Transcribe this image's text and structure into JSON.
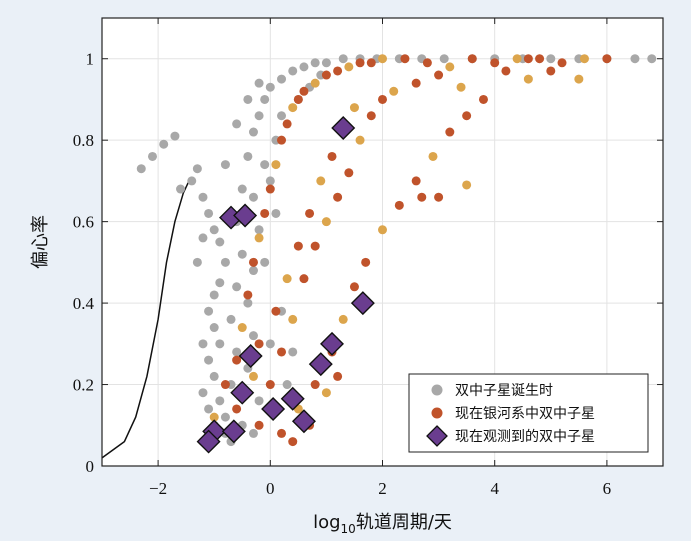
{
  "chart_data": {
    "type": "scatter",
    "xlabel_prefix": "log",
    "xlabel_sub": "10",
    "xlabel_suffix": "轨道周期/天",
    "ylabel": "偏心率",
    "xlim": [
      -3,
      7
    ],
    "ylim": [
      0,
      1.1
    ],
    "xticks": [
      -2,
      0,
      2,
      4,
      6
    ],
    "xtick_labels": [
      "−2",
      "0",
      "2",
      "4",
      "6"
    ],
    "yticks": [
      0,
      0.2,
      0.4,
      0.6,
      0.8,
      1
    ],
    "ytick_labels": [
      "0",
      "0.2",
      "0.4",
      "0.6",
      "0.8",
      "1"
    ],
    "grid": true,
    "legend_position": "bottom-right",
    "colors": {
      "birth": "#a8a8a8",
      "galaxy": "#c0532b",
      "galaxy_alt": "#dca54c",
      "observed": "#6a3d8f",
      "curve": "#111111",
      "background": "#eaf0f7",
      "plot_bg": "#ffffff",
      "grid": "#e3e3e3"
    },
    "series": [
      {
        "name": "双中子星诞生时",
        "marker": "circle",
        "color": "#a8a8a8",
        "points": [
          [
            -2.3,
            0.73
          ],
          [
            -2.1,
            0.76
          ],
          [
            -1.9,
            0.79
          ],
          [
            -1.7,
            0.81
          ],
          [
            -1.6,
            0.68
          ],
          [
            -1.4,
            0.7
          ],
          [
            -1.3,
            0.73
          ],
          [
            -1.2,
            0.66
          ],
          [
            -1.1,
            0.62
          ],
          [
            -1.0,
            0.58
          ],
          [
            -0.9,
            0.55
          ],
          [
            -0.8,
            0.5
          ],
          [
            -0.9,
            0.45
          ],
          [
            -1.0,
            0.42
          ],
          [
            -1.1,
            0.38
          ],
          [
            -1.0,
            0.34
          ],
          [
            -0.9,
            0.3
          ],
          [
            -1.1,
            0.26
          ],
          [
            -1.0,
            0.22
          ],
          [
            -1.2,
            0.18
          ],
          [
            -1.1,
            0.14
          ],
          [
            -1.0,
            0.1
          ],
          [
            -0.8,
            0.12
          ],
          [
            -0.7,
            0.2
          ],
          [
            -0.6,
            0.28
          ],
          [
            -0.7,
            0.36
          ],
          [
            -0.6,
            0.44
          ],
          [
            -0.5,
            0.52
          ],
          [
            -0.6,
            0.6
          ],
          [
            -0.5,
            0.68
          ],
          [
            -0.4,
            0.76
          ],
          [
            -0.3,
            0.82
          ],
          [
            -0.2,
            0.86
          ],
          [
            -0.1,
            0.9
          ],
          [
            0.0,
            0.93
          ],
          [
            0.2,
            0.95
          ],
          [
            0.4,
            0.97
          ],
          [
            0.6,
            0.98
          ],
          [
            0.8,
            0.99
          ],
          [
            1.0,
            0.99
          ],
          [
            1.3,
            1.0
          ],
          [
            1.6,
            1.0
          ],
          [
            1.9,
            1.0
          ],
          [
            2.3,
            1.0
          ],
          [
            2.7,
            1.0
          ],
          [
            3.1,
            1.0
          ],
          [
            3.6,
            1.0
          ],
          [
            4.0,
            1.0
          ],
          [
            4.5,
            1.0
          ],
          [
            5.0,
            1.0
          ],
          [
            5.5,
            1.0
          ],
          [
            6.0,
            1.0
          ],
          [
            6.5,
            1.0
          ],
          [
            6.8,
            1.0
          ],
          [
            -0.4,
            0.9
          ],
          [
            -0.2,
            0.94
          ],
          [
            -0.6,
            0.84
          ],
          [
            -0.8,
            0.74
          ],
          [
            -0.3,
            0.66
          ],
          [
            -0.2,
            0.58
          ],
          [
            -0.3,
            0.48
          ],
          [
            -0.4,
            0.4
          ],
          [
            -0.3,
            0.32
          ],
          [
            -0.4,
            0.24
          ],
          [
            -0.2,
            0.16
          ],
          [
            -0.5,
            0.1
          ],
          [
            -0.3,
            0.08
          ],
          [
            0.0,
            0.7
          ],
          [
            0.1,
            0.8
          ],
          [
            0.2,
            0.86
          ],
          [
            -0.8,
            0.08
          ],
          [
            -0.9,
            0.16
          ],
          [
            -0.7,
            0.06
          ],
          [
            -1.2,
            0.3
          ],
          [
            -1.3,
            0.5
          ],
          [
            -1.2,
            0.56
          ],
          [
            0.3,
            0.2
          ],
          [
            0.4,
            0.28
          ],
          [
            0.2,
            0.38
          ],
          [
            0.5,
            0.9
          ],
          [
            0.7,
            0.93
          ],
          [
            0.9,
            0.96
          ],
          [
            -0.1,
            0.74
          ],
          [
            0.1,
            0.62
          ],
          [
            -0.1,
            0.5
          ],
          [
            0.0,
            0.3
          ]
        ]
      },
      {
        "name": "现在银河系中双中子星",
        "marker": "circle",
        "color": "#c0532b",
        "color_alt": "#dca54c",
        "points": [
          [
            -1.2,
            0.06
          ],
          [
            -1.0,
            0.12
          ],
          [
            -0.8,
            0.2
          ],
          [
            -0.6,
            0.26
          ],
          [
            -0.5,
            0.34
          ],
          [
            -0.4,
            0.42
          ],
          [
            -0.3,
            0.5
          ],
          [
            -0.2,
            0.56
          ],
          [
            -0.1,
            0.62
          ],
          [
            0.0,
            0.68
          ],
          [
            0.1,
            0.74
          ],
          [
            0.2,
            0.8
          ],
          [
            0.3,
            0.84
          ],
          [
            0.4,
            0.88
          ],
          [
            0.5,
            0.9
          ],
          [
            0.6,
            0.92
          ],
          [
            0.8,
            0.94
          ],
          [
            1.0,
            0.96
          ],
          [
            1.2,
            0.97
          ],
          [
            1.4,
            0.98
          ],
          [
            1.6,
            0.99
          ],
          [
            1.8,
            0.99
          ],
          [
            2.0,
            1.0
          ],
          [
            2.4,
            1.0
          ],
          [
            2.8,
            0.99
          ],
          [
            3.2,
            0.98
          ],
          [
            3.6,
            1.0
          ],
          [
            4.0,
            0.99
          ],
          [
            4.4,
            1.0
          ],
          [
            4.8,
            1.0
          ],
          [
            5.2,
            0.99
          ],
          [
            5.6,
            1.0
          ],
          [
            0.0,
            0.2
          ],
          [
            0.2,
            0.28
          ],
          [
            0.4,
            0.36
          ],
          [
            0.6,
            0.46
          ],
          [
            0.8,
            0.54
          ],
          [
            1.0,
            0.6
          ],
          [
            1.2,
            0.66
          ],
          [
            1.4,
            0.72
          ],
          [
            1.6,
            0.8
          ],
          [
            1.8,
            0.86
          ],
          [
            2.0,
            0.9
          ],
          [
            2.2,
            0.92
          ],
          [
            2.6,
            0.94
          ],
          [
            3.0,
            0.96
          ],
          [
            3.4,
            0.93
          ],
          [
            3.8,
            0.9
          ],
          [
            0.2,
            0.08
          ],
          [
            0.5,
            0.14
          ],
          [
            0.8,
            0.2
          ],
          [
            1.1,
            0.28
          ],
          [
            1.3,
            0.36
          ],
          [
            1.5,
            0.44
          ],
          [
            1.7,
            0.5
          ],
          [
            2.0,
            0.58
          ],
          [
            2.3,
            0.64
          ],
          [
            2.6,
            0.7
          ],
          [
            2.9,
            0.76
          ],
          [
            3.2,
            0.82
          ],
          [
            3.5,
            0.86
          ],
          [
            4.6,
            0.95
          ],
          [
            5.0,
            0.97
          ],
          [
            -0.6,
            0.14
          ],
          [
            -0.3,
            0.22
          ],
          [
            -0.2,
            0.3
          ],
          [
            0.1,
            0.38
          ],
          [
            0.3,
            0.46
          ],
          [
            0.5,
            0.54
          ],
          [
            0.7,
            0.62
          ],
          [
            0.9,
            0.7
          ],
          [
            1.1,
            0.76
          ],
          [
            1.3,
            0.82
          ],
          [
            1.5,
            0.88
          ],
          [
            2.7,
            0.66
          ],
          [
            3.0,
            0.66
          ],
          [
            3.5,
            0.69
          ],
          [
            4.2,
            0.97
          ],
          [
            4.6,
            1.0
          ],
          [
            5.5,
            0.95
          ],
          [
            6.0,
            1.0
          ],
          [
            -0.2,
            0.1
          ],
          [
            0.0,
            0.14
          ],
          [
            0.4,
            0.06
          ],
          [
            0.7,
            0.1
          ],
          [
            1.0,
            0.18
          ],
          [
            1.2,
            0.22
          ]
        ]
      },
      {
        "name": "现在观测到的双中子星",
        "marker": "diamond",
        "color": "#6a3d8f",
        "points": [
          [
            1.3,
            0.83
          ],
          [
            -0.7,
            0.61
          ],
          [
            -0.45,
            0.615
          ],
          [
            1.65,
            0.4
          ],
          [
            1.1,
            0.3
          ],
          [
            -0.35,
            0.27
          ],
          [
            0.9,
            0.25
          ],
          [
            -0.5,
            0.18
          ],
          [
            0.4,
            0.165
          ],
          [
            0.05,
            0.14
          ],
          [
            0.6,
            0.11
          ],
          [
            -1.0,
            0.085
          ],
          [
            -0.65,
            0.085
          ],
          [
            -1.1,
            0.06
          ]
        ]
      }
    ],
    "curve": {
      "description": "",
      "points": [
        [
          -3,
          0.02
        ],
        [
          -2.6,
          0.06
        ],
        [
          -2.4,
          0.12
        ],
        [
          -2.2,
          0.22
        ],
        [
          -2.0,
          0.36
        ],
        [
          -1.85,
          0.5
        ],
        [
          -1.7,
          0.6
        ],
        [
          -1.55,
          0.67
        ],
        [
          -1.45,
          0.7
        ]
      ]
    }
  }
}
